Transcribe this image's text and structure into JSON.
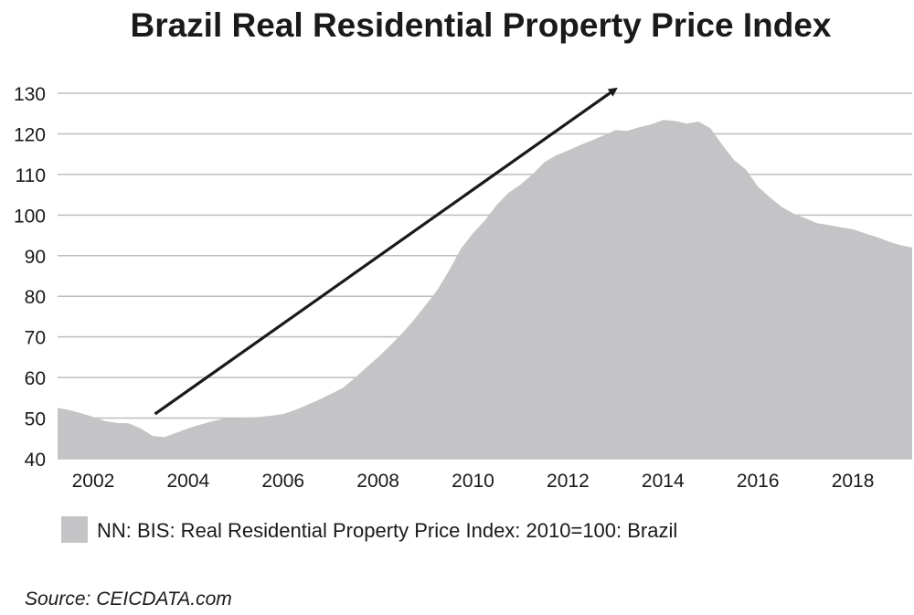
{
  "chart_data": {
    "type": "area",
    "title": "Brazil Real Residential Property Price Index",
    "xlabel": "",
    "ylabel": "",
    "ylim": [
      40,
      130
    ],
    "yticks": [
      40,
      50,
      60,
      70,
      80,
      90,
      100,
      110,
      120,
      130
    ],
    "xlim": [
      2001.25,
      2019.25
    ],
    "xticks": [
      "2002",
      "2004",
      "2006",
      "2008",
      "2010",
      "2012",
      "2014",
      "2016",
      "2018"
    ],
    "grid": "horizontal",
    "series": [
      {
        "name": "NN: BIS: Real Residential Property Price Index: 2010=100: Brazil",
        "x": [
          2001.25,
          2001.5,
          2001.75,
          2002.0,
          2002.25,
          2002.5,
          2002.75,
          2003.0,
          2003.25,
          2003.5,
          2003.75,
          2004.0,
          2004.25,
          2004.5,
          2004.75,
          2005.0,
          2005.25,
          2005.5,
          2005.75,
          2006.0,
          2006.25,
          2006.5,
          2006.75,
          2007.0,
          2007.25,
          2007.5,
          2007.75,
          2008.0,
          2008.25,
          2008.5,
          2008.75,
          2009.0,
          2009.25,
          2009.5,
          2009.75,
          2010.0,
          2010.25,
          2010.5,
          2010.75,
          2011.0,
          2011.25,
          2011.5,
          2011.75,
          2012.0,
          2012.25,
          2012.5,
          2012.75,
          2013.0,
          2013.25,
          2013.5,
          2013.75,
          2014.0,
          2014.25,
          2014.5,
          2014.75,
          2015.0,
          2015.25,
          2015.5,
          2015.75,
          2016.0,
          2016.25,
          2016.5,
          2016.75,
          2017.0,
          2017.25,
          2017.5,
          2017.75,
          2018.0,
          2018.25,
          2018.5,
          2018.75,
          2019.0,
          2019.25
        ],
        "values": [
          52.5,
          52.0,
          51.2,
          50.3,
          49.3,
          48.8,
          48.7,
          47.5,
          45.6,
          45.3,
          46.4,
          47.5,
          48.4,
          49.2,
          49.9,
          50.0,
          50.1,
          50.3,
          50.6,
          51.0,
          52.0,
          53.2,
          54.5,
          55.9,
          57.4,
          59.8,
          62.4,
          65.0,
          67.8,
          70.8,
          74.1,
          77.8,
          81.6,
          86.4,
          91.8,
          95.5,
          98.7,
          102.5,
          105.5,
          107.5,
          110.0,
          113.0,
          114.7,
          115.9,
          117.2,
          118.4,
          119.6,
          120.9,
          120.7,
          121.6,
          122.3,
          123.4,
          123.2,
          122.5,
          123.0,
          121.4,
          117.3,
          113.5,
          111.2,
          107.0,
          104.4,
          102.0,
          100.4,
          99.2,
          98.0,
          97.5,
          97.0,
          96.5,
          95.5,
          94.6,
          93.5,
          92.6,
          92.0
        ]
      }
    ],
    "annotation": {
      "type": "arrow",
      "from": [
        2003.3,
        51.0
      ],
      "to": [
        2013.0,
        131.0
      ]
    },
    "legend": "bottom",
    "source": "Source: CEICDATA.com",
    "colors": {
      "area": "#c4c4c6",
      "grid": "#bdbdbd",
      "text": "#1a1a1a",
      "arrow": "#1a1a1a"
    }
  }
}
